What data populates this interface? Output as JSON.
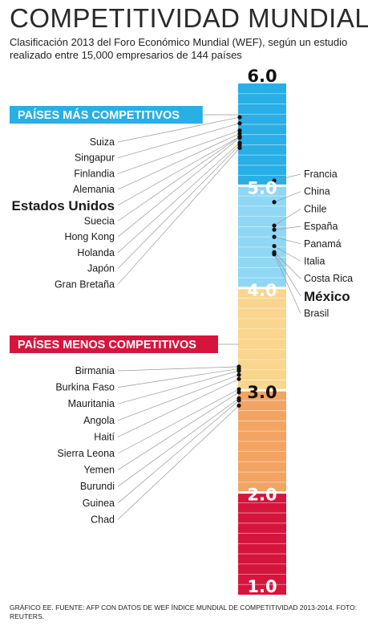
{
  "title": "COMPETITIVIDAD MUNDIAL",
  "subtitle": "Clasificación 2013 del Foro Económico Mundial (WEF), según un estudio realizado entre 15,000 empresarios de 144 países",
  "footer": "Gráfico EE. Fuente: AFP con datos de WEF Índice Mundial de Competitividad 2013-2014. Foto: Reuters.",
  "colors": {
    "band_5_6": "#29aee6",
    "band_4_5": "#8fd7f5",
    "band_3_4": "#f9d58e",
    "band_2_3": "#f3a463",
    "band_1_2": "#d6153c",
    "leaders_badge": "#29aee6",
    "laggards_badge": "#d6153c",
    "connector": "#999999",
    "dot": "#111111"
  },
  "chart_data": {
    "type": "scatter",
    "scale": {
      "min": 1.0,
      "max": 6.0,
      "tick_labels": [
        "6.0",
        "5.0",
        "4.0",
        "3.0",
        "2.0",
        "1.0"
      ]
    },
    "groups": [
      {
        "name": "PAÍSES MÁS COMPETITIVOS",
        "points": [
          {
            "label": "Suiza",
            "value": 5.67
          },
          {
            "label": "Singapur",
            "value": 5.61
          },
          {
            "label": "Finlandia",
            "value": 5.54
          },
          {
            "label": "Alemania",
            "value": 5.51
          },
          {
            "label": "Estados Unidos",
            "value": 5.48,
            "highlight": true
          },
          {
            "label": "Suecia",
            "value": 5.48
          },
          {
            "label": "Hong Kong",
            "value": 5.47
          },
          {
            "label": "Holanda",
            "value": 5.42
          },
          {
            "label": "Japón",
            "value": 5.4
          },
          {
            "label": "Gran Bretaña",
            "value": 5.37
          }
        ]
      },
      {
        "name": "",
        "points": [
          {
            "label": "Francia",
            "value": 5.05
          },
          {
            "label": "China",
            "value": 4.84
          },
          {
            "label": "Chile",
            "value": 4.61
          },
          {
            "label": "España",
            "value": 4.57
          },
          {
            "label": "Panamá",
            "value": 4.5
          },
          {
            "label": "Italia",
            "value": 4.41
          },
          {
            "label": "Costa Rica",
            "value": 4.35
          },
          {
            "label": "México",
            "value": 4.34,
            "highlight": true
          },
          {
            "label": "Brasil",
            "value": 4.33
          }
        ]
      },
      {
        "name": "PAÍSES MENOS COMPETITIVOS",
        "points": [
          {
            "label": "Birmania",
            "value": 3.23
          },
          {
            "label": "Burkina Faso",
            "value": 3.21
          },
          {
            "label": "Mauritania",
            "value": 3.19
          },
          {
            "label": "Angola",
            "value": 3.15
          },
          {
            "label": "Haití",
            "value": 3.11
          },
          {
            "label": "Sierra Leona",
            "value": 3.01
          },
          {
            "label": "Yemen",
            "value": 2.98
          },
          {
            "label": "Burundi",
            "value": 2.92
          },
          {
            "label": "Guinea",
            "value": 2.9
          },
          {
            "label": "Chad",
            "value": 2.85
          }
        ]
      }
    ]
  }
}
